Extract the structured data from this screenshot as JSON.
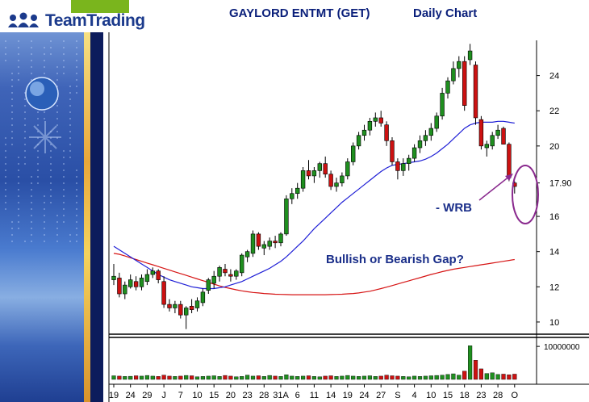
{
  "brand": {
    "name": "TeamTrading"
  },
  "header": {
    "title": "GAYLORD ENTMT (GET)",
    "subtitle": "Daily Chart"
  },
  "colors": {
    "up": "#1f8f1f",
    "down": "#cc1111",
    "ma20": "#1f1fd6",
    "ma50": "#d61414",
    "annotation": "#1b2f8a",
    "ellipse": "#8a2a8e",
    "title": "#0a1f7a"
  },
  "chart_data": {
    "type": "candlestick",
    "price_axis": {
      "ticks": [
        10,
        12,
        14,
        16,
        17.9,
        20,
        22,
        24
      ],
      "tick_labels": [
        "10",
        "12",
        "14",
        "16",
        "17.90",
        "20",
        "22",
        "24"
      ],
      "ylim": [
        9.4,
        26.0
      ]
    },
    "volume_axis": {
      "tick": 10000000,
      "tick_label": "10000000",
      "ylim": [
        0,
        11500000
      ]
    },
    "x_labels": [
      "19",
      "24",
      "29",
      "J",
      "7",
      "10",
      "15",
      "20",
      "23",
      "28",
      "31A",
      "6",
      "11",
      "14",
      "19",
      "24",
      "27",
      "S",
      "4",
      "10",
      "15",
      "18",
      "23",
      "28",
      "O"
    ],
    "label_bars": [
      0,
      3,
      6,
      9,
      12,
      15,
      18,
      21,
      24,
      27,
      30,
      33,
      36,
      39,
      42,
      45,
      48,
      51,
      54,
      57,
      60,
      63,
      66,
      69,
      72
    ],
    "candles": [
      {
        "o": 12.4,
        "h": 13.3,
        "l": 12.1,
        "c": 12.6
      },
      {
        "o": 12.5,
        "h": 12.8,
        "l": 11.4,
        "c": 11.6
      },
      {
        "o": 11.6,
        "h": 12.3,
        "l": 11.3,
        "c": 12.1
      },
      {
        "o": 12.0,
        "h": 12.7,
        "l": 11.9,
        "c": 12.4
      },
      {
        "o": 12.3,
        "h": 12.6,
        "l": 11.8,
        "c": 12.0
      },
      {
        "o": 12.0,
        "h": 12.7,
        "l": 11.8,
        "c": 12.5
      },
      {
        "o": 12.3,
        "h": 13.0,
        "l": 12.1,
        "c": 12.7
      },
      {
        "o": 12.7,
        "h": 13.1,
        "l": 12.5,
        "c": 12.9
      },
      {
        "o": 12.9,
        "h": 13.0,
        "l": 12.2,
        "c": 12.4
      },
      {
        "o": 12.3,
        "h": 12.6,
        "l": 10.8,
        "c": 11.0
      },
      {
        "o": 11.0,
        "h": 11.3,
        "l": 10.6,
        "c": 10.8
      },
      {
        "o": 10.8,
        "h": 11.2,
        "l": 10.5,
        "c": 11.0
      },
      {
        "o": 11.0,
        "h": 11.2,
        "l": 10.2,
        "c": 10.4
      },
      {
        "o": 10.4,
        "h": 10.9,
        "l": 9.6,
        "c": 10.8
      },
      {
        "o": 10.9,
        "h": 11.3,
        "l": 10.5,
        "c": 10.7
      },
      {
        "o": 10.8,
        "h": 11.4,
        "l": 10.6,
        "c": 11.2
      },
      {
        "o": 11.1,
        "h": 11.9,
        "l": 10.9,
        "c": 11.7
      },
      {
        "o": 11.8,
        "h": 12.5,
        "l": 11.6,
        "c": 12.4
      },
      {
        "o": 12.2,
        "h": 12.9,
        "l": 11.9,
        "c": 12.6
      },
      {
        "o": 12.6,
        "h": 13.2,
        "l": 12.3,
        "c": 13.1
      },
      {
        "o": 13.0,
        "h": 13.3,
        "l": 12.6,
        "c": 12.8
      },
      {
        "o": 12.7,
        "h": 13.0,
        "l": 12.3,
        "c": 12.6
      },
      {
        "o": 12.6,
        "h": 13.0,
        "l": 12.4,
        "c": 12.9
      },
      {
        "o": 12.8,
        "h": 13.9,
        "l": 12.6,
        "c": 13.8
      },
      {
        "o": 13.7,
        "h": 14.1,
        "l": 13.4,
        "c": 14.0
      },
      {
        "o": 13.9,
        "h": 15.2,
        "l": 13.7,
        "c": 15.0
      },
      {
        "o": 15.0,
        "h": 15.1,
        "l": 14.1,
        "c": 14.3
      },
      {
        "o": 14.2,
        "h": 14.6,
        "l": 13.8,
        "c": 14.4
      },
      {
        "o": 14.3,
        "h": 14.8,
        "l": 14.1,
        "c": 14.6
      },
      {
        "o": 14.6,
        "h": 14.9,
        "l": 14.2,
        "c": 14.5
      },
      {
        "o": 14.5,
        "h": 15.1,
        "l": 14.3,
        "c": 15.0
      },
      {
        "o": 15.0,
        "h": 17.2,
        "l": 14.9,
        "c": 17.0
      },
      {
        "o": 17.0,
        "h": 17.6,
        "l": 16.7,
        "c": 17.3
      },
      {
        "o": 17.3,
        "h": 17.9,
        "l": 17.0,
        "c": 17.6
      },
      {
        "o": 17.6,
        "h": 18.8,
        "l": 17.4,
        "c": 18.6
      },
      {
        "o": 18.6,
        "h": 19.2,
        "l": 18.1,
        "c": 18.3
      },
      {
        "o": 18.3,
        "h": 18.8,
        "l": 17.9,
        "c": 18.6
      },
      {
        "o": 18.6,
        "h": 19.1,
        "l": 18.2,
        "c": 19.0
      },
      {
        "o": 19.0,
        "h": 19.4,
        "l": 18.2,
        "c": 18.4
      },
      {
        "o": 18.4,
        "h": 18.6,
        "l": 17.5,
        "c": 17.7
      },
      {
        "o": 17.7,
        "h": 18.2,
        "l": 17.4,
        "c": 17.9
      },
      {
        "o": 17.9,
        "h": 18.5,
        "l": 17.7,
        "c": 18.3
      },
      {
        "o": 18.3,
        "h": 19.3,
        "l": 18.1,
        "c": 19.1
      },
      {
        "o": 19.1,
        "h": 20.2,
        "l": 18.9,
        "c": 20.0
      },
      {
        "o": 20.0,
        "h": 20.8,
        "l": 19.8,
        "c": 20.6
      },
      {
        "o": 20.6,
        "h": 21.2,
        "l": 20.3,
        "c": 20.9
      },
      {
        "o": 20.9,
        "h": 21.6,
        "l": 20.6,
        "c": 21.4
      },
      {
        "o": 21.4,
        "h": 21.9,
        "l": 21.1,
        "c": 21.6
      },
      {
        "o": 21.6,
        "h": 22.0,
        "l": 21.1,
        "c": 21.3
      },
      {
        "o": 21.2,
        "h": 21.4,
        "l": 20.0,
        "c": 20.3
      },
      {
        "o": 20.3,
        "h": 20.5,
        "l": 18.9,
        "c": 19.1
      },
      {
        "o": 19.1,
        "h": 19.3,
        "l": 18.1,
        "c": 18.6
      },
      {
        "o": 18.6,
        "h": 19.3,
        "l": 18.3,
        "c": 19.0
      },
      {
        "o": 19.0,
        "h": 19.5,
        "l": 18.6,
        "c": 19.3
      },
      {
        "o": 19.3,
        "h": 20.1,
        "l": 19.1,
        "c": 19.9
      },
      {
        "o": 19.9,
        "h": 20.6,
        "l": 19.6,
        "c": 20.3
      },
      {
        "o": 20.3,
        "h": 20.9,
        "l": 20.0,
        "c": 20.6
      },
      {
        "o": 20.6,
        "h": 21.3,
        "l": 20.3,
        "c": 21.0
      },
      {
        "o": 21.0,
        "h": 21.9,
        "l": 20.8,
        "c": 21.7
      },
      {
        "o": 21.7,
        "h": 23.3,
        "l": 21.5,
        "c": 23.0
      },
      {
        "o": 23.0,
        "h": 23.9,
        "l": 22.7,
        "c": 23.7
      },
      {
        "o": 23.7,
        "h": 24.8,
        "l": 23.5,
        "c": 24.4
      },
      {
        "o": 24.4,
        "h": 25.1,
        "l": 23.9,
        "c": 24.8
      },
      {
        "o": 24.8,
        "h": 25.1,
        "l": 22.0,
        "c": 22.3
      },
      {
        "o": 24.9,
        "h": 25.8,
        "l": 24.6,
        "c": 25.4
      },
      {
        "o": 24.6,
        "h": 24.8,
        "l": 21.2,
        "c": 21.6
      },
      {
        "o": 21.5,
        "h": 21.7,
        "l": 19.8,
        "c": 20.0
      },
      {
        "o": 19.9,
        "h": 20.3,
        "l": 19.4,
        "c": 20.1
      },
      {
        "o": 20.0,
        "h": 20.8,
        "l": 19.8,
        "c": 20.6
      },
      {
        "o": 20.6,
        "h": 21.2,
        "l": 20.4,
        "c": 20.9
      },
      {
        "o": 21.0,
        "h": 21.1,
        "l": 20.2,
        "c": 20.1
      },
      {
        "o": 20.1,
        "h": 20.2,
        "l": 18.0,
        "c": 18.2
      },
      {
        "o": 17.9,
        "h": 18.0,
        "l": 17.3,
        "c": 17.7
      }
    ],
    "volume": [
      1100000,
      1000000,
      900000,
      950000,
      1100000,
      1000000,
      1200000,
      1000000,
      900000,
      1300000,
      1000000,
      900000,
      1000000,
      1200000,
      1100000,
      800000,
      900000,
      1000000,
      1100000,
      900000,
      1200000,
      1000000,
      800000,
      900000,
      1300000,
      1000000,
      1100000,
      900000,
      1200000,
      1000000,
      900000,
      1400000,
      1000000,
      900000,
      1000000,
      1100000,
      900000,
      800000,
      1000000,
      1100000,
      900000,
      1000000,
      1200000,
      1000000,
      900000,
      1000000,
      1100000,
      900000,
      1000000,
      1300000,
      1100000,
      1000000,
      900000,
      800000,
      1000000,
      900000,
      1000000,
      1100000,
      1200000,
      1300000,
      1500000,
      1700000,
      1300000,
      2500000,
      10200000,
      5800000,
      3200000,
      1800000,
      2000000,
      1500000,
      1600000,
      1400000,
      1600000
    ],
    "ma20": [
      14.3,
      14.1,
      13.9,
      13.7,
      13.5,
      13.3,
      13.1,
      12.9,
      12.7,
      12.55,
      12.4,
      12.3,
      12.2,
      12.1,
      12.0,
      11.95,
      11.9,
      11.9,
      11.9,
      11.95,
      12.0,
      12.1,
      12.2,
      12.3,
      12.45,
      12.6,
      12.75,
      12.9,
      13.05,
      13.25,
      13.45,
      13.7,
      14.0,
      14.3,
      14.6,
      14.95,
      15.3,
      15.6,
      15.9,
      16.2,
      16.5,
      16.8,
      17.05,
      17.3,
      17.55,
      17.8,
      18.05,
      18.3,
      18.55,
      18.75,
      18.9,
      18.95,
      19.0,
      19.05,
      19.1,
      19.15,
      19.25,
      19.4,
      19.6,
      19.85,
      20.1,
      20.4,
      20.7,
      21.0,
      21.2,
      21.3,
      21.35,
      21.35,
      21.35,
      21.4,
      21.4,
      21.35,
      21.3
    ],
    "ma50": [
      13.9,
      13.85,
      13.75,
      13.65,
      13.55,
      13.45,
      13.35,
      13.25,
      13.15,
      13.05,
      12.95,
      12.85,
      12.75,
      12.65,
      12.55,
      12.45,
      12.35,
      12.25,
      12.15,
      12.05,
      11.97,
      11.9,
      11.83,
      11.77,
      11.72,
      11.68,
      11.65,
      11.62,
      11.6,
      11.58,
      11.57,
      11.56,
      11.55,
      11.55,
      11.55,
      11.55,
      11.55,
      11.55,
      11.55,
      11.56,
      11.57,
      11.58,
      11.6,
      11.62,
      11.65,
      11.7,
      11.75,
      11.82,
      11.9,
      11.98,
      12.07,
      12.16,
      12.25,
      12.34,
      12.43,
      12.52,
      12.61,
      12.7,
      12.78,
      12.86,
      12.93,
      13.0,
      13.05,
      13.1,
      13.15,
      13.2,
      13.25,
      13.3,
      13.35,
      13.4,
      13.45,
      13.5,
      13.55
    ],
    "annotations": [
      {
        "text": "- WRB"
      },
      {
        "text": "Bullish or Bearish Gap?"
      }
    ]
  }
}
